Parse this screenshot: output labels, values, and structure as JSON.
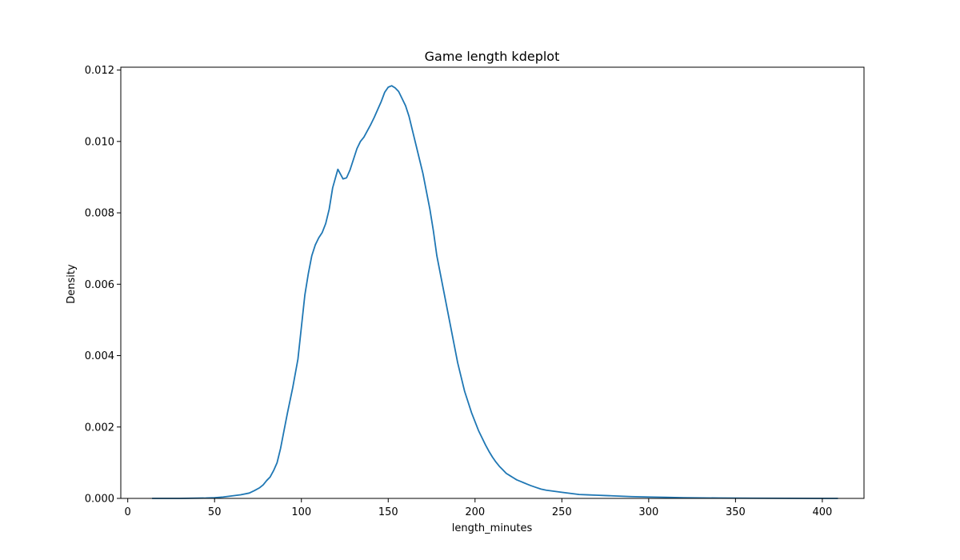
{
  "chart_data": {
    "type": "line",
    "title": "Game length kdeplot",
    "xlabel": "length_minutes",
    "ylabel": "Density",
    "xlim": [
      -4,
      424
    ],
    "ylim": [
      0,
      0.01208
    ],
    "xticks": [
      0,
      50,
      100,
      150,
      200,
      250,
      300,
      350,
      400
    ],
    "xtick_labels": [
      "0",
      "50",
      "100",
      "150",
      "200",
      "250",
      "300",
      "350",
      "400"
    ],
    "yticks": [
      0,
      0.002,
      0.004,
      0.006,
      0.008,
      0.01,
      0.012
    ],
    "ytick_labels": [
      "0.000",
      "0.002",
      "0.004",
      "0.006",
      "0.008",
      "0.010",
      "0.012"
    ],
    "grid": false,
    "series": [
      {
        "color": "#1f77b4",
        "x": [
          14,
          30,
          45,
          50,
          55,
          60,
          65,
          70,
          73,
          76,
          78,
          80,
          82,
          84,
          86,
          88,
          90,
          92,
          95,
          98,
          100,
          102,
          104,
          106,
          108,
          110,
          112,
          114,
          116,
          118,
          121,
          124,
          126,
          128,
          130,
          132,
          134,
          136,
          138,
          140,
          142,
          144,
          146,
          148,
          150,
          152,
          154,
          156,
          158,
          160,
          162,
          164,
          166,
          168,
          170,
          172,
          174,
          176,
          178,
          180,
          182,
          184,
          186,
          188,
          190,
          192,
          194,
          196,
          198,
          200,
          202,
          204,
          206,
          208,
          210,
          212,
          214,
          216,
          218,
          220,
          222,
          224,
          226,
          228,
          230,
          232,
          235,
          238,
          241,
          244,
          247,
          250,
          255,
          260,
          265,
          270,
          275,
          280,
          290,
          300,
          310,
          320,
          340,
          360,
          380,
          400,
          409
        ],
        "y": [
          0,
          0,
          1e-05,
          2e-05,
          4e-05,
          7e-05,
          0.0001,
          0.00015,
          0.00022,
          0.0003,
          0.00038,
          0.0005,
          0.0006,
          0.00078,
          0.001,
          0.0014,
          0.0019,
          0.0024,
          0.0031,
          0.0039,
          0.0048,
          0.0057,
          0.0063,
          0.0068,
          0.0071,
          0.0073,
          0.00745,
          0.0077,
          0.0081,
          0.0087,
          0.00922,
          0.00895,
          0.00898,
          0.0092,
          0.0095,
          0.0098,
          0.01,
          0.01012,
          0.0103,
          0.01048,
          0.01068,
          0.0109,
          0.01112,
          0.01138,
          0.01152,
          0.01156,
          0.0115,
          0.0114,
          0.0112,
          0.011,
          0.0107,
          0.0103,
          0.0099,
          0.0095,
          0.0091,
          0.0086,
          0.0081,
          0.0075,
          0.0068,
          0.0063,
          0.0058,
          0.0053,
          0.0048,
          0.0043,
          0.0038,
          0.0034,
          0.003,
          0.0027,
          0.0024,
          0.00215,
          0.0019,
          0.0017,
          0.0015,
          0.00132,
          0.00116,
          0.00102,
          0.0009,
          0.0008,
          0.0007,
          0.00064,
          0.00058,
          0.00052,
          0.00048,
          0.00044,
          0.0004,
          0.00036,
          0.00031,
          0.00026,
          0.00023,
          0.00021,
          0.00019,
          0.00017,
          0.00014,
          0.00011,
          0.0001,
          9e-05,
          8e-05,
          7e-05,
          5e-05,
          4e-05,
          3e-05,
          2e-05,
          1e-05,
          5e-06,
          2e-06,
          0,
          0
        ]
      }
    ]
  }
}
